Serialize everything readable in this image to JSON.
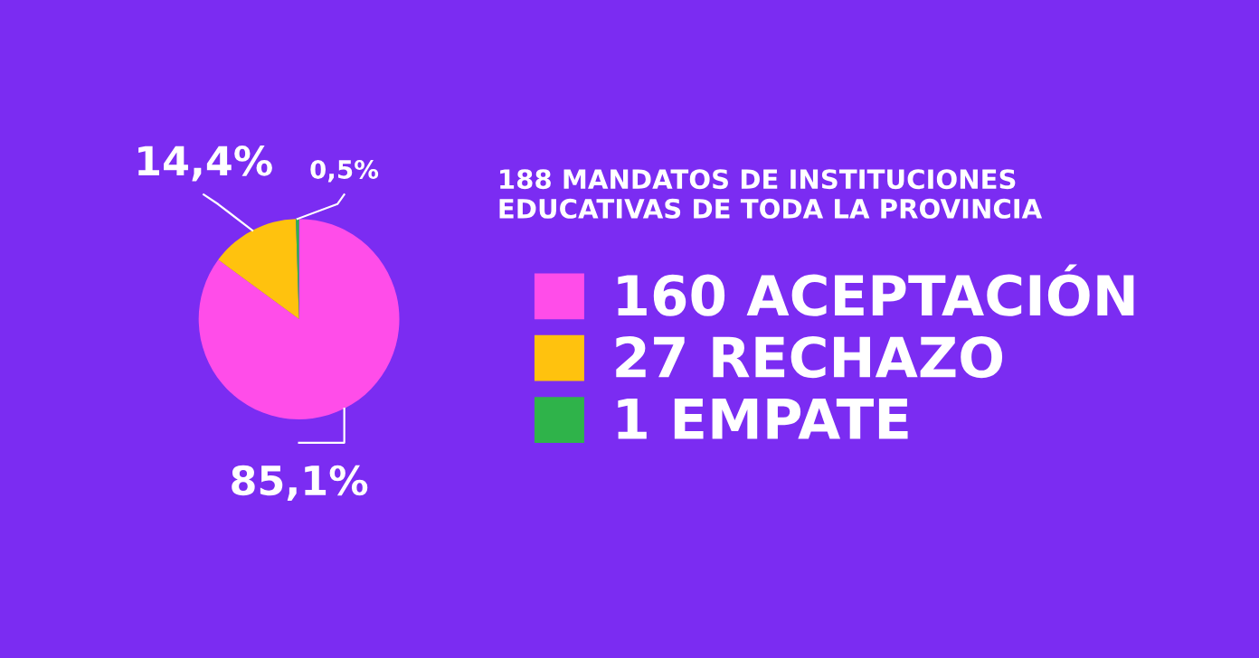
{
  "chart_data": {
    "type": "pie",
    "title": "188 MANDATOS DE INSTITUCIONES\nEDUCATIVAS DE TODA LA PROVINCIA",
    "categories": [
      "160 ACEPTACIÓN",
      "27 RECHAZO",
      "1 EMPATE"
    ],
    "values": [
      85.1,
      14.4,
      0.5
    ],
    "value_labels": [
      "85,1%",
      "14,4%",
      "0,5%"
    ],
    "colors": [
      "#ff4de9",
      "#ffc20e",
      "#2fb34a"
    ],
    "legend": "right"
  }
}
